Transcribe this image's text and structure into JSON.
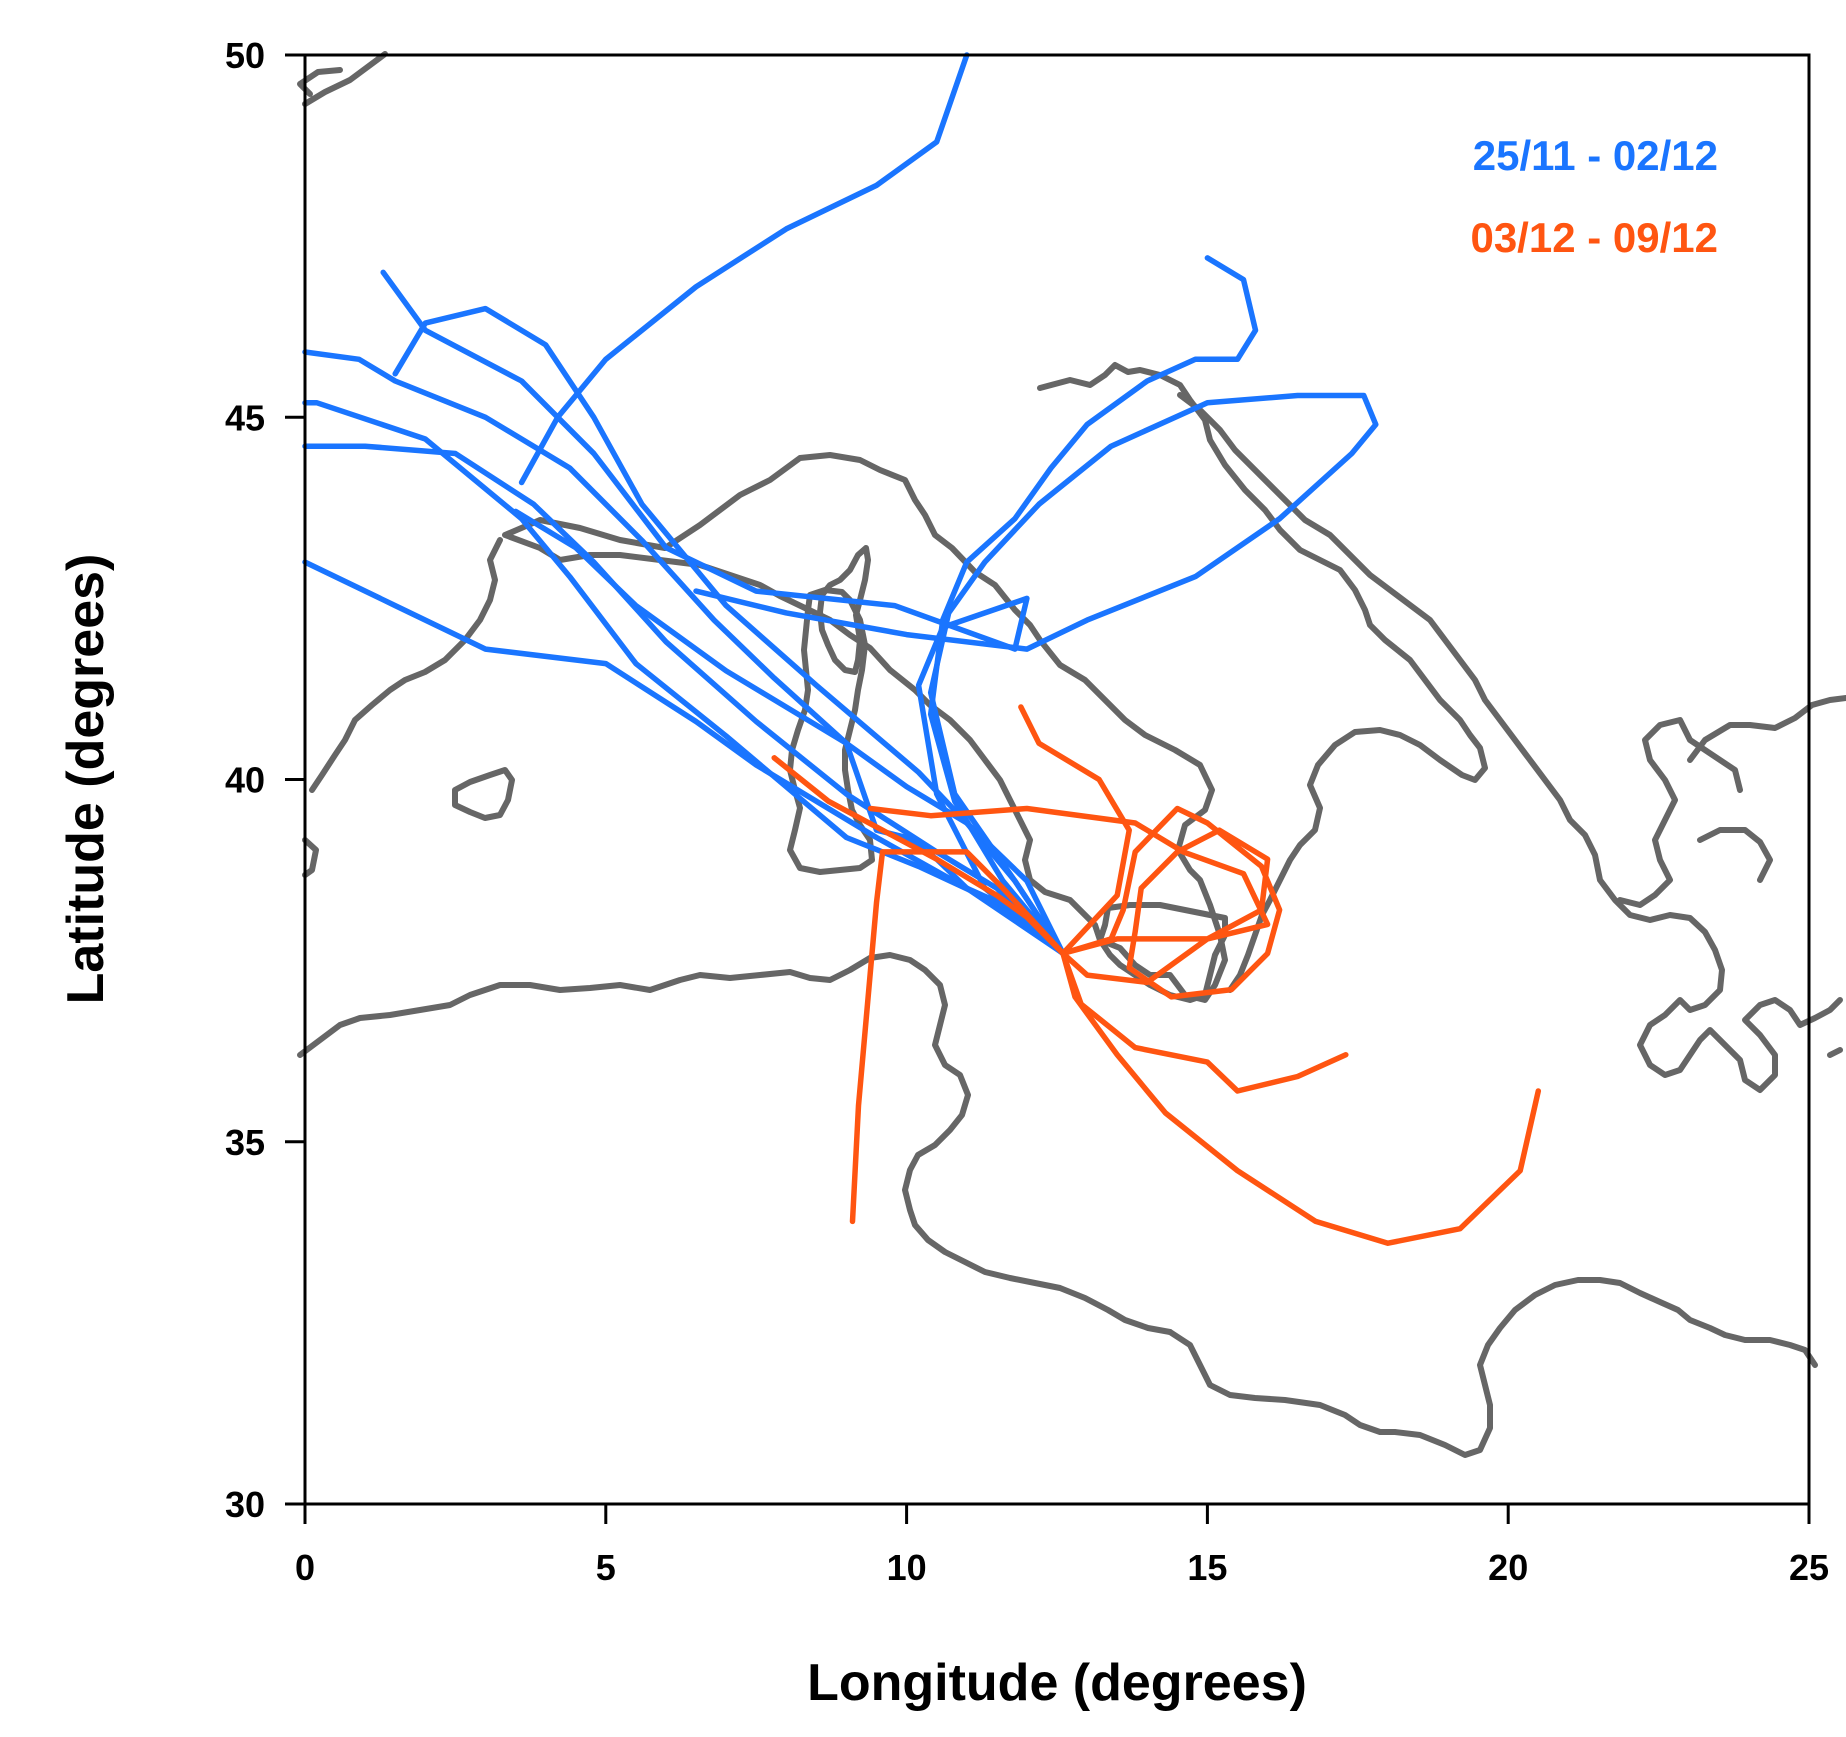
{
  "chart_data": {
    "type": "line",
    "title": "",
    "xlabel": "Longitude (degrees)",
    "ylabel": "Latitude (degrees)",
    "xlim": [
      0,
      25
    ],
    "ylim": [
      30,
      50
    ],
    "xticks": [
      0,
      5,
      10,
      15,
      20,
      25
    ],
    "yticks": [
      30,
      35,
      40,
      45,
      50
    ],
    "grid": false,
    "legend_placement": "top-right",
    "colors": {
      "coastline": "#666666",
      "group1": "#1a75ff",
      "group2": "#ff5511"
    },
    "legend": [
      {
        "label": "25/11 - 02/12",
        "color": "#1a75ff"
      },
      {
        "label": "03/12 - 09/12",
        "color": "#ff5511"
      }
    ],
    "series": [
      {
        "group": 0,
        "points": [
          [
            12.6,
            37.6
          ],
          [
            11.5,
            38.3
          ],
          [
            10.2,
            38.8
          ],
          [
            9.0,
            39.2
          ],
          [
            7.0,
            40.6
          ],
          [
            5.5,
            41.6
          ],
          [
            4.4,
            42.8
          ],
          [
            3.6,
            43.6
          ],
          [
            2.0,
            44.7
          ],
          [
            0.2,
            45.2
          ],
          [
            0,
            45.2
          ]
        ]
      },
      {
        "group": 0,
        "points": [
          [
            12.6,
            37.6
          ],
          [
            11.5,
            38.5
          ],
          [
            10.5,
            39.0
          ],
          [
            9.0,
            39.8
          ],
          [
            7.5,
            40.8
          ],
          [
            6.0,
            41.9
          ],
          [
            4.8,
            43.0
          ],
          [
            3.8,
            43.8
          ],
          [
            2.5,
            44.5
          ],
          [
            1.0,
            44.6
          ],
          [
            0,
            44.6
          ]
        ]
      },
      {
        "group": 0,
        "points": [
          [
            12.6,
            37.6
          ],
          [
            11.0,
            38.5
          ],
          [
            9.5,
            39.2
          ],
          [
            7.5,
            40.2
          ],
          [
            6.5,
            40.8
          ],
          [
            5.0,
            41.6
          ],
          [
            3.0,
            41.8
          ],
          [
            1.5,
            42.4
          ],
          [
            0,
            43.0
          ]
        ]
      },
      {
        "group": 0,
        "points": [
          [
            12.6,
            37.6
          ],
          [
            11.8,
            38.6
          ],
          [
            11.0,
            39.4
          ],
          [
            10.0,
            39.9
          ],
          [
            9.0,
            40.5
          ],
          [
            7.8,
            41.4
          ],
          [
            6.8,
            42.2
          ],
          [
            5.6,
            43.3
          ],
          [
            4.4,
            44.3
          ],
          [
            3.0,
            45.0
          ],
          [
            1.5,
            45.5
          ],
          [
            0.9,
            45.8
          ],
          [
            0,
            45.9
          ]
        ]
      },
      {
        "group": 0,
        "points": [
          [
            12.6,
            37.6
          ],
          [
            11.8,
            38.2
          ],
          [
            11.0,
            38.5
          ],
          [
            10.5,
            38.9
          ],
          [
            10.0,
            39.2
          ],
          [
            9.5,
            39.3
          ],
          [
            9.0,
            40.5
          ],
          [
            7.0,
            41.5
          ],
          [
            5.5,
            42.4
          ],
          [
            4.5,
            43.2
          ],
          [
            3.5,
            43.7
          ]
        ]
      },
      {
        "group": 0,
        "points": [
          [
            12.6,
            37.6
          ],
          [
            12.0,
            38.6
          ],
          [
            11.0,
            39.4
          ],
          [
            10.2,
            40.1
          ],
          [
            8.5,
            41.3
          ],
          [
            7.0,
            42.4
          ],
          [
            5.6,
            43.8
          ],
          [
            4.8,
            45.0
          ],
          [
            4.0,
            46.0
          ],
          [
            3.0,
            46.5
          ],
          [
            2.0,
            46.3
          ],
          [
            1.5,
            45.6
          ]
        ]
      },
      {
        "group": 0,
        "points": [
          [
            12.6,
            37.6
          ],
          [
            11.3,
            38.5
          ],
          [
            10.5,
            39.8
          ],
          [
            10.2,
            41.3
          ],
          [
            10.6,
            42.1
          ],
          [
            12.0,
            42.5
          ],
          [
            11.8,
            41.8
          ],
          [
            9.8,
            42.4
          ],
          [
            7.5,
            42.6
          ],
          [
            6.0,
            43.2
          ],
          [
            4.8,
            44.5
          ],
          [
            3.6,
            45.5
          ],
          [
            2.0,
            46.2
          ],
          [
            1.3,
            47.0
          ]
        ]
      },
      {
        "group": 0,
        "points": [
          [
            12.6,
            37.6
          ],
          [
            11.6,
            38.6
          ],
          [
            10.8,
            39.7
          ],
          [
            10.4,
            40.9
          ],
          [
            10.6,
            42.2
          ],
          [
            11.0,
            43.0
          ],
          [
            11.8,
            43.6
          ],
          [
            12.4,
            44.3
          ],
          [
            13.0,
            44.9
          ],
          [
            14.0,
            45.5
          ],
          [
            14.8,
            45.8
          ],
          [
            15.5,
            45.8
          ],
          [
            15.8,
            46.2
          ],
          [
            15.6,
            46.9
          ],
          [
            15.0,
            47.2
          ]
        ]
      },
      {
        "group": 0,
        "points": [
          [
            12.6,
            37.6
          ],
          [
            11.8,
            38.6
          ],
          [
            10.8,
            39.8
          ],
          [
            10.4,
            41.2
          ],
          [
            10.7,
            42.3
          ],
          [
            11.3,
            43.0
          ],
          [
            12.2,
            43.8
          ],
          [
            13.4,
            44.6
          ],
          [
            15.0,
            45.2
          ],
          [
            16.5,
            45.3
          ],
          [
            17.6,
            45.3
          ],
          [
            17.8,
            44.9
          ],
          [
            17.4,
            44.5
          ],
          [
            16.2,
            43.6
          ],
          [
            14.8,
            42.8
          ],
          [
            13.0,
            42.2
          ],
          [
            12.0,
            41.8
          ],
          [
            10.0,
            42.0
          ],
          [
            8.0,
            42.3
          ],
          [
            6.5,
            42.6
          ]
        ]
      },
      {
        "group": 0,
        "points": [
          [
            3.6,
            44.1
          ],
          [
            4.2,
            45.0
          ],
          [
            5.0,
            45.8
          ],
          [
            6.5,
            46.8
          ],
          [
            8.0,
            47.6
          ],
          [
            9.5,
            48.2
          ],
          [
            10.5,
            48.8
          ],
          [
            11.0,
            50.0
          ]
        ]
      },
      {
        "group": 1,
        "points": [
          [
            12.6,
            37.6
          ],
          [
            12.0,
            38.1
          ],
          [
            11.5,
            38.4
          ],
          [
            10.5,
            38.9
          ],
          [
            9.6,
            39.3
          ],
          [
            8.7,
            39.7
          ],
          [
            7.8,
            40.3
          ]
        ]
      },
      {
        "group": 1,
        "points": [
          [
            12.6,
            37.6
          ],
          [
            11.6,
            38.5
          ],
          [
            11.0,
            39.0
          ],
          [
            9.6,
            39.0
          ],
          [
            9.5,
            38.3
          ],
          [
            9.2,
            35.5
          ],
          [
            9.1,
            33.9
          ]
        ]
      },
      {
        "group": 1,
        "points": [
          [
            12.6,
            37.6
          ],
          [
            13.5,
            38.4
          ],
          [
            13.7,
            39.3
          ],
          [
            13.2,
            40.0
          ],
          [
            12.2,
            40.5
          ],
          [
            11.9,
            41.0
          ]
        ]
      },
      {
        "group": 1,
        "points": [
          [
            12.6,
            37.6
          ],
          [
            13.5,
            37.8
          ],
          [
            15.0,
            37.8
          ],
          [
            15.9,
            38.2
          ],
          [
            16.0,
            38.9
          ],
          [
            15.2,
            39.3
          ],
          [
            14.5,
            39.0
          ],
          [
            13.9,
            38.5
          ],
          [
            13.8,
            37.9
          ],
          [
            13.7,
            37.4
          ],
          [
            14.4,
            37.0
          ],
          [
            15.4,
            37.1
          ],
          [
            16.0,
            37.6
          ],
          [
            16.2,
            38.2
          ],
          [
            15.9,
            38.8
          ],
          [
            15.0,
            39.4
          ],
          [
            14.5,
            39.6
          ],
          [
            13.8,
            39.0
          ],
          [
            13.6,
            38.2
          ],
          [
            13.4,
            37.8
          ],
          [
            12.6,
            37.6
          ],
          [
            13.0,
            37.3
          ],
          [
            14.0,
            37.2
          ],
          [
            15.0,
            37.8
          ],
          [
            16.0,
            38.0
          ],
          [
            15.6,
            38.7
          ],
          [
            14.6,
            39.0
          ],
          [
            13.8,
            39.4
          ],
          [
            12.0,
            39.6
          ],
          [
            10.4,
            39.5
          ],
          [
            9.4,
            39.6
          ]
        ]
      },
      {
        "group": 1,
        "points": [
          [
            12.6,
            37.6
          ],
          [
            12.9,
            36.9
          ],
          [
            13.8,
            36.3
          ],
          [
            15.0,
            36.1
          ],
          [
            15.5,
            35.7
          ],
          [
            16.5,
            35.9
          ],
          [
            17.3,
            36.2
          ]
        ]
      },
      {
        "group": 1,
        "points": [
          [
            12.6,
            37.6
          ],
          [
            12.8,
            37.0
          ],
          [
            13.5,
            36.2
          ],
          [
            14.3,
            35.4
          ],
          [
            15.5,
            34.6
          ],
          [
            16.8,
            33.9
          ],
          [
            18.0,
            33.6
          ],
          [
            19.2,
            33.8
          ],
          [
            20.2,
            34.6
          ],
          [
            20.5,
            35.7
          ]
        ]
      }
    ]
  }
}
